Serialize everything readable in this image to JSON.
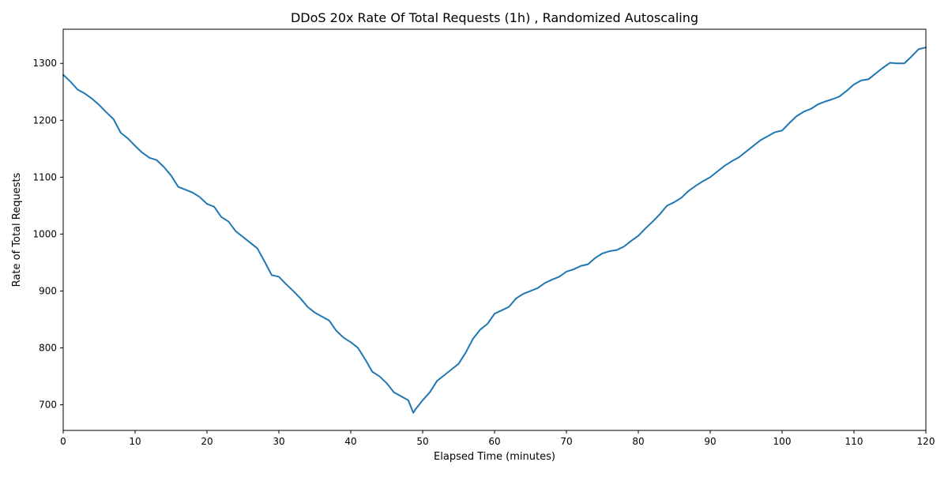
{
  "chart_data": {
    "type": "line",
    "title": "DDoS 20x Rate Of Total Requests (1h) , Randomized Autoscaling",
    "xlabel": "Elapsed Time (minutes)",
    "ylabel": "Rate of Total Requests",
    "xlim": [
      0,
      120
    ],
    "ylim": [
      655,
      1360
    ],
    "xticks": [
      0,
      10,
      20,
      30,
      40,
      50,
      60,
      70,
      80,
      90,
      100,
      110,
      120
    ],
    "yticks": [
      700,
      800,
      900,
      1000,
      1100,
      1200,
      1300
    ],
    "grid": false,
    "line_color": "#1f77b4",
    "series": [
      {
        "x": [
          0,
          1,
          2,
          3,
          4,
          5,
          6,
          7,
          8,
          9,
          10,
          11,
          12,
          13,
          14,
          15,
          16,
          17,
          18,
          19,
          20,
          21,
          22,
          23,
          24,
          25,
          26,
          27,
          28,
          29,
          30,
          31,
          32,
          33,
          34,
          35,
          36,
          37,
          38,
          39,
          40,
          41,
          42,
          43,
          44,
          45,
          46,
          47,
          48,
          48.7,
          49,
          50,
          51,
          52,
          53,
          54,
          55,
          56,
          57,
          58,
          59,
          60,
          61,
          62,
          63,
          64,
          65,
          66,
          67,
          68,
          69,
          70,
          71,
          72,
          73,
          74,
          75,
          76,
          77,
          78,
          79,
          80,
          81,
          82,
          83,
          84,
          85,
          86,
          87,
          88,
          89,
          90,
          91,
          92,
          93,
          94,
          95,
          96,
          97,
          98,
          99,
          100,
          101,
          102,
          103,
          104,
          105,
          106,
          107,
          108,
          109,
          110,
          111,
          112,
          113,
          114,
          115,
          116,
          117,
          118,
          119,
          120
        ],
        "y": [
          1280,
          1268,
          1254,
          1247,
          1238,
          1227,
          1214,
          1202,
          1178,
          1168,
          1155,
          1143,
          1134,
          1130,
          1118,
          1103,
          1083,
          1078,
          1073,
          1065,
          1053,
          1048,
          1030,
          1022,
          1005,
          995,
          985,
          975,
          952,
          928,
          925,
          912,
          900,
          887,
          872,
          862,
          855,
          848,
          830,
          818,
          810,
          800,
          780,
          758,
          750,
          738,
          722,
          715,
          708,
          686,
          692,
          708,
          722,
          742,
          752,
          762,
          772,
          792,
          816,
          832,
          842,
          860,
          866,
          872,
          887,
          895,
          900,
          905,
          914,
          920,
          925,
          934,
          938,
          944,
          947,
          958,
          966,
          970,
          972,
          978,
          988,
          997,
          1010,
          1022,
          1035,
          1050,
          1056,
          1064,
          1076,
          1085,
          1093,
          1100,
          1110,
          1120,
          1128,
          1135,
          1145,
          1155,
          1165,
          1172,
          1179,
          1182,
          1195,
          1207,
          1215,
          1220,
          1228,
          1233,
          1237,
          1242,
          1252,
          1263,
          1270,
          1272,
          1282,
          1292,
          1301,
          1300,
          1300,
          1312,
          1325,
          1328
        ]
      }
    ]
  }
}
